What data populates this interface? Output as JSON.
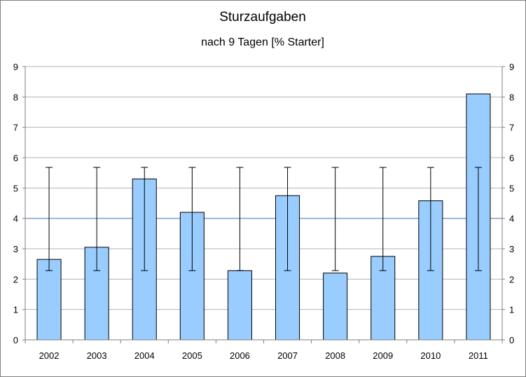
{
  "chart_data": {
    "type": "bar",
    "title": "Sturzaufgaben",
    "subtitle": "nach 9 Tagen [% Starter]",
    "categories": [
      "2002",
      "2003",
      "2004",
      "2005",
      "2006",
      "2007",
      "2008",
      "2009",
      "2010",
      "2011"
    ],
    "values": [
      2.65,
      3.05,
      5.3,
      4.2,
      2.28,
      4.75,
      2.2,
      2.75,
      4.58,
      8.1
    ],
    "error_bars": {
      "low": 2.28,
      "high": 5.68
    },
    "reference_line": 4.0,
    "ylim": [
      0,
      9
    ],
    "yticks": [
      0,
      1,
      2,
      3,
      4,
      5,
      6,
      7,
      8,
      9
    ],
    "secondary_axis": true,
    "grid": true,
    "xlabel": "",
    "ylabel": "",
    "colors": {
      "bar_fill": "#99ccff",
      "bar_stroke": "#000000",
      "grid": "#b3b3b3",
      "reference_line": "#7f9fcf",
      "error_bar": "#000000"
    }
  }
}
